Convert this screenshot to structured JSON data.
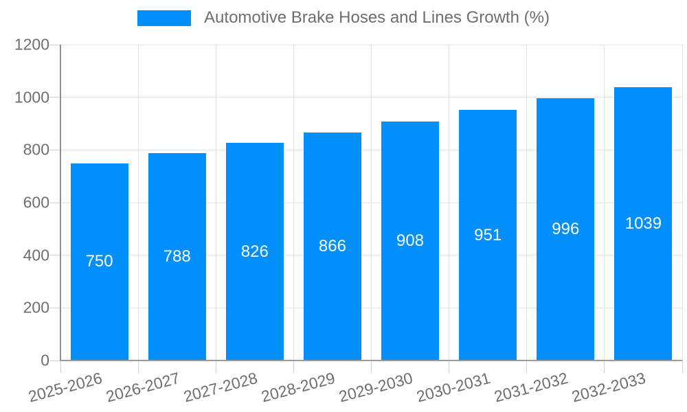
{
  "chart_data": {
    "type": "bar",
    "title": "Automotive Brake Hoses and Lines Growth (%)",
    "categories": [
      "2025-2026",
      "2026-2027",
      "2027-2028",
      "2028-2029",
      "2029-2030",
      "2030-2031",
      "2031-2032",
      "2032-2033"
    ],
    "series": [
      {
        "name": "Automotive Brake Hoses and Lines Growth (%)",
        "values": [
          750,
          788,
          826,
          866,
          908,
          951,
          996,
          1039
        ]
      }
    ],
    "xlabel": "",
    "ylabel": "",
    "ylim": [
      0,
      1200
    ],
    "yticks": [
      0,
      200,
      400,
      600,
      800,
      1000,
      1200
    ],
    "grid": true,
    "legend_position": "top",
    "x_label_rotation_deg": -15,
    "colors": {
      "bar": "#008FFB",
      "value_label": "#FFFFFF",
      "axis_text": "#6E6E6E",
      "grid_line": "#E3E3E3",
      "axis_line": "#999999",
      "tick_mark": "#CFCFCF",
      "background": "#FFFFFF"
    }
  }
}
